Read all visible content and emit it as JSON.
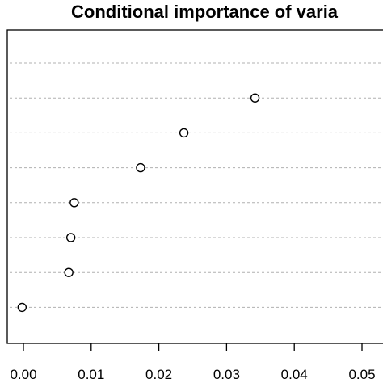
{
  "chart_data": {
    "type": "scatter",
    "title": "Conditional importance of varia",
    "xlabel": "",
    "ylabel": "",
    "xlim": [
      0.0,
      0.056
    ],
    "x_ticks": [
      0.0,
      0.01,
      0.02,
      0.03,
      0.04,
      0.05
    ],
    "x_tick_labels": [
      "0.00",
      "0.01",
      "0.02",
      "0.03",
      "0.04",
      "0.05"
    ],
    "grid": "horizontal dotted lines at each category row",
    "categories_count": 8,
    "values": [
      null,
      0.0342,
      0.0237,
      0.0173,
      0.0075,
      0.007,
      0.0067,
      -0.0002
    ]
  }
}
